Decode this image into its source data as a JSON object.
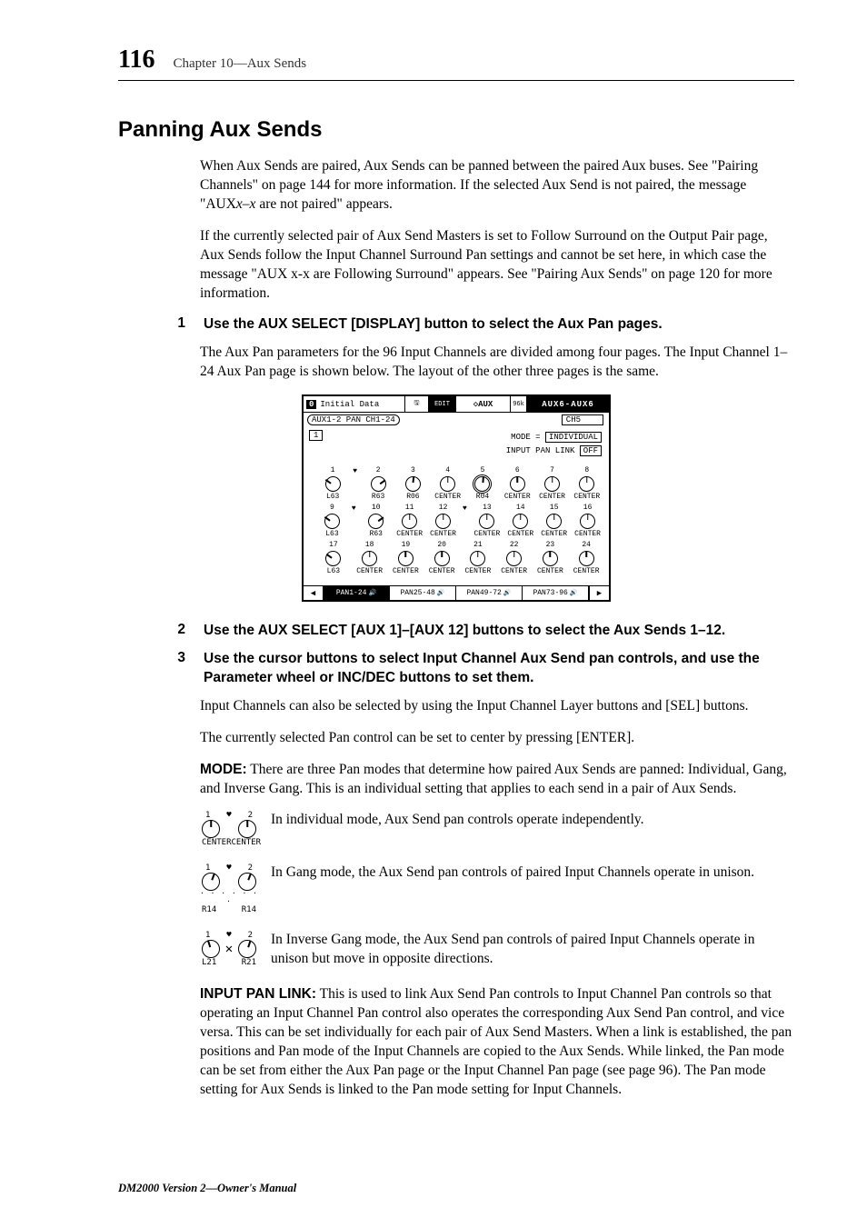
{
  "page_number": "116",
  "chapter_title": "Chapter 10—Aux Sends",
  "section_heading": "Panning Aux Sends",
  "intro_p1_a": "When Aux Sends are paired, Aux Sends can be panned between the paired Aux buses. See \"Pairing Channels\" on page 144 for more information. If the selected Aux Send is not paired, the message \"AUX",
  "intro_p1_italic": "x–x",
  "intro_p1_b": " are not paired\" appears.",
  "intro_p2": "If the currently selected pair of Aux Send Masters is set to Follow Surround on the Output Pair page, Aux Sends follow the Input Channel Surround Pan settings and cannot be set here, in which case the message \"AUX x-x are Following Surround\" appears. See \"Pairing Aux Sends\" on page 120 for more information.",
  "steps": {
    "s1_num": "1",
    "s1_text": "Use the AUX SELECT [DISPLAY] button to select the Aux Pan pages.",
    "s1_body": "The Aux Pan parameters for the 96 Input Channels are divided among four pages. The Input Channel 1–24 Aux Pan page is shown below. The layout of the other three pages is the same.",
    "s2_num": "2",
    "s2_text": "Use the AUX SELECT [AUX 1]–[AUX 12] buttons to select the Aux Sends 1–12.",
    "s3_num": "3",
    "s3_text": "Use the cursor buttons to select Input Channel Aux Send pan controls, and use the Parameter wheel or INC/DEC buttons to set them."
  },
  "after_s3_p1": "Input Channels can also be selected by using the Input Channel Layer buttons and [SEL] buttons.",
  "after_s3_p2": "The currently selected Pan control can be set to center by pressing [ENTER].",
  "mode_runin": "MODE:",
  "mode_body": " There are three Pan modes that determine how paired Aux Sends are panned: Individual, Gang, and Inverse Gang. This is an individual setting that applies to each send in a pair of Aux Sends.",
  "mode_individual_text": "In individual mode, Aux Send pan controls operate independently.",
  "mode_gang_text": "In Gang mode, the Aux Send pan controls of paired Input Channels operate in unison.",
  "mode_inverse_text": "In Inverse Gang mode, the Aux Send pan controls of paired Input Channels operate in unison but move in opposite directions.",
  "inputpan_runin": "INPUT PAN LINK:",
  "inputpan_body": " This is used to link Aux Send Pan controls to Input Channel Pan controls so that operating an Input Channel Pan control also operates the corresponding Aux Send Pan control, and vice versa. This can be set individually for each pair of Aux Send Masters. When a link is established, the pan positions and Pan mode of the Input Channels are copied to the Aux Sends. While linked, the Pan mode can be set from either the Aux Pan page or the Input Channel Pan page (see page 96). The Pan mode setting for Aux Sends is linked to the Pan mode setting for Input Channels.",
  "footer": "DM2000 Version 2—Owner's Manual",
  "lcd": {
    "title_badge": "0",
    "title_text": "Initial Data",
    "edit_badge": "EDIT",
    "aux_label": "◇AUX",
    "aux_sel": "AUX6-AUX6",
    "subhead": "AUX1-2 PAN CH1-24",
    "ch_box": "CH5",
    "one_box": "1",
    "mode_line": "MODE = ",
    "mode_value": "INDIVIDUAL",
    "link_line": "INPUT PAN LINK ",
    "link_value": "OFF",
    "rows": [
      {
        "pair12": true,
        "cells": [
          {
            "n": "1",
            "v": "L63",
            "rot": "l55"
          },
          {
            "n": "2",
            "v": "R63",
            "rot": "r55"
          },
          {
            "n": "3",
            "v": "R06",
            "rot": "r6"
          },
          {
            "n": "4",
            "v": "CENTER",
            "rot": "c"
          },
          {
            "n": "5",
            "v": "R04",
            "rot": "r4",
            "sel": true
          },
          {
            "n": "6",
            "v": "CENTER",
            "rot": "c"
          },
          {
            "n": "7",
            "v": "CENTER",
            "rot": "c"
          },
          {
            "n": "8",
            "v": "CENTER",
            "rot": "c"
          }
        ]
      },
      {
        "pair12": true,
        "mid": true,
        "cells": [
          {
            "n": "9",
            "v": "L63",
            "rot": "l55"
          },
          {
            "n": "10",
            "v": "R63",
            "rot": "r55"
          },
          {
            "n": "11",
            "v": "CENTER",
            "rot": "c"
          },
          {
            "n": "12",
            "v": "CENTER",
            "rot": "c"
          },
          {
            "n": "13",
            "v": "CENTER",
            "rot": "c"
          },
          {
            "n": "14",
            "v": "CENTER",
            "rot": "c"
          },
          {
            "n": "15",
            "v": "CENTER",
            "rot": "c"
          },
          {
            "n": "16",
            "v": "CENTER",
            "rot": "c"
          }
        ]
      },
      {
        "pair12": false,
        "cells": [
          {
            "n": "17",
            "v": "L63",
            "rot": "l55"
          },
          {
            "n": "18",
            "v": "CENTER",
            "rot": "c"
          },
          {
            "n": "19",
            "v": "CENTER",
            "rot": "c"
          },
          {
            "n": "20",
            "v": "CENTER",
            "rot": "c"
          },
          {
            "n": "21",
            "v": "CENTER",
            "rot": "c"
          },
          {
            "n": "22",
            "v": "CENTER",
            "rot": "c"
          },
          {
            "n": "23",
            "v": "CENTER",
            "rot": "c"
          },
          {
            "n": "24",
            "v": "CENTER",
            "rot": "c"
          }
        ]
      }
    ],
    "tabs": {
      "left_arrow": "◀",
      "t1": "PAN1-24",
      "t2": "PAN25-48",
      "t3": "PAN49-72",
      "t4": "PAN73-96",
      "right_arrow": "▶"
    }
  },
  "mode_icons": {
    "individual": {
      "n1": "1",
      "n2": "2",
      "v1": "CENTER",
      "v2": "CENTER",
      "heart": "♥"
    },
    "gang": {
      "n1": "1",
      "n2": "2",
      "v1": "R14",
      "v2": "R14",
      "heart": "♥"
    },
    "inverse": {
      "n1": "1",
      "n2": "2",
      "v1": "L21",
      "v2": "R21",
      "heart": "♥",
      "x": "✕"
    }
  }
}
